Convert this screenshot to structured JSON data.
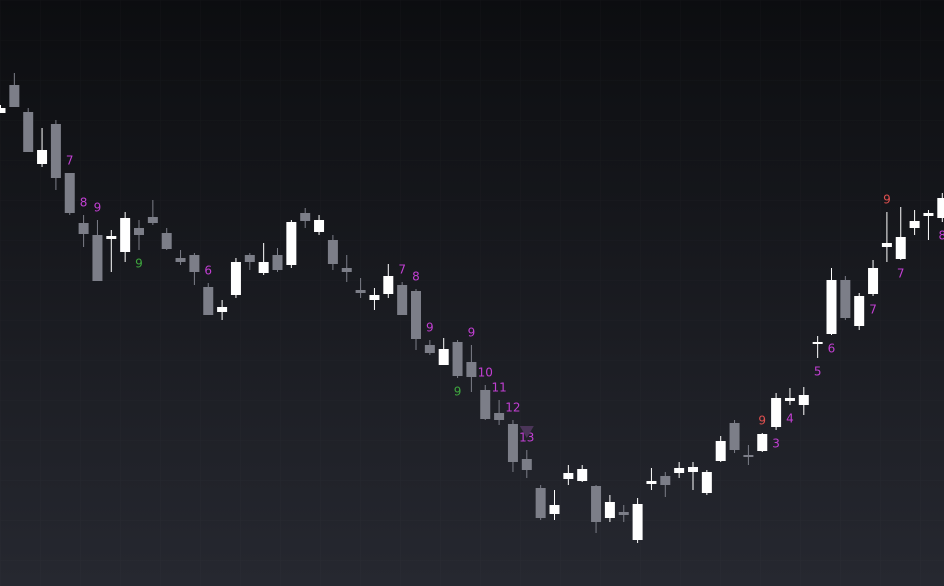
{
  "chart_data": {
    "type": "candlestick",
    "open": [
      473,
      501,
      474,
      422,
      462,
      413,
      363,
      351,
      347,
      334,
      358,
      369,
      353,
      328,
      331,
      299,
      274,
      291,
      331,
      313,
      331,
      321,
      373,
      354,
      346,
      318,
      296,
      286,
      292,
      301,
      295,
      241,
      221,
      244,
      224,
      196,
      173,
      162,
      127,
      98,
      72,
      107,
      105,
      100,
      68,
      74,
      46,
      102,
      110,
      113,
      114,
      93,
      125,
      163,
      131,
      135,
      159,
      185,
      181,
      242,
      252,
      306,
      260,
      292,
      339,
      327,
      358,
      370,
      368
    ],
    "high": [
      481,
      513,
      478,
      458,
      466,
      413,
      371,
      366,
      356,
      374,
      366,
      386,
      358,
      336,
      333,
      303,
      286,
      328,
      333,
      343,
      338,
      366,
      378,
      371,
      351,
      331,
      308,
      298,
      322,
      304,
      297,
      246,
      248,
      246,
      241,
      201,
      186,
      166,
      136,
      101,
      96,
      121,
      121,
      101,
      91,
      81,
      88,
      118,
      114,
      124,
      124,
      116,
      150,
      166,
      141,
      153,
      193,
      198,
      199,
      250,
      318,
      310,
      293,
      326,
      374,
      379,
      376,
      376,
      393
    ],
    "low": [
      473,
      479,
      434,
      419,
      396,
      371,
      339,
      305,
      314,
      324,
      336,
      361,
      336,
      321,
      301,
      271,
      266,
      288,
      316,
      311,
      314,
      318,
      358,
      351,
      316,
      304,
      288,
      276,
      288,
      271,
      236,
      231,
      221,
      208,
      194,
      166,
      161,
      114,
      108,
      66,
      66,
      101,
      104,
      53,
      64,
      64,
      43,
      96,
      89,
      108,
      96,
      91,
      124,
      133,
      121,
      134,
      156,
      181,
      171,
      228,
      251,
      266,
      256,
      290,
      324,
      326,
      351,
      346,
      364
    ],
    "close": [
      478,
      479,
      434,
      436,
      408,
      373,
      352,
      305,
      350,
      368,
      351,
      363,
      337,
      324,
      314,
      271,
      279,
      324,
      324,
      324,
      316,
      364,
      365,
      366,
      322,
      314,
      293,
      291,
      310,
      271,
      247,
      233,
      237,
      210,
      209,
      167,
      166,
      124,
      116,
      68,
      81,
      113,
      117,
      64,
      84,
      71,
      82,
      105,
      101,
      118,
      119,
      114,
      145,
      136,
      129,
      152,
      188,
      188,
      191,
      244,
      306,
      268,
      290,
      318,
      343,
      349,
      365,
      373,
      388
    ],
    "ylim": [
      0,
      586
    ],
    "up_color": "#ffffff",
    "down_color": "#7c7e88",
    "annotations": [
      {
        "text": "7",
        "index": 5,
        "side": "above",
        "color": "#c13fd2"
      },
      {
        "text": "8",
        "index": 6,
        "side": "above",
        "color": "#c13fd2"
      },
      {
        "text": "9",
        "index": 7,
        "side": "above",
        "color": "#c13fd2"
      },
      {
        "text": "9",
        "index": 10,
        "side": "below",
        "color": "#3fa83f"
      },
      {
        "text": "6",
        "index": 15,
        "side": "above",
        "color": "#c13fd2"
      },
      {
        "text": "7",
        "index": 29,
        "side": "above",
        "color": "#c13fd2"
      },
      {
        "text": "8",
        "index": 30,
        "side": "above",
        "color": "#c13fd2"
      },
      {
        "text": "9",
        "index": 31,
        "side": "above",
        "color": "#c13fd2"
      },
      {
        "text": "9",
        "index": 33,
        "side": "below",
        "color": "#3fa83f"
      },
      {
        "text": "9",
        "index": 34,
        "side": "above",
        "color": "#c13fd2"
      },
      {
        "text": "10",
        "index": 35,
        "side": "above",
        "color": "#c13fd2"
      },
      {
        "text": "11",
        "index": 36,
        "side": "above",
        "color": "#c13fd2"
      },
      {
        "text": "12",
        "index": 37,
        "side": "above",
        "color": "#c13fd2"
      },
      {
        "text": "13",
        "index": 38,
        "side": "above",
        "color": "#c13fd2"
      },
      {
        "text": "9",
        "index": 55,
        "side": "above",
        "color": "#e0504f"
      },
      {
        "text": "3",
        "index": 56,
        "side": "below",
        "color": "#c13fd2"
      },
      {
        "text": "4",
        "index": 57,
        "side": "below",
        "color": "#c13fd2"
      },
      {
        "text": "5",
        "index": 59,
        "side": "below",
        "color": "#c13fd2"
      },
      {
        "text": "6",
        "index": 60,
        "side": "below",
        "color": "#c13fd2"
      },
      {
        "text": "7",
        "index": 63,
        "side": "below",
        "color": "#c13fd2"
      },
      {
        "text": "9",
        "index": 64,
        "side": "above",
        "color": "#e0504f"
      },
      {
        "text": "7",
        "index": 65,
        "side": "below",
        "color": "#c13fd2"
      },
      {
        "text": "8",
        "index": 68,
        "side": "below",
        "color": "#c13fd2"
      }
    ],
    "markers": [
      {
        "shape": "triangle-down",
        "index": 38,
        "side": "above",
        "color": "#4b3559"
      }
    ]
  }
}
